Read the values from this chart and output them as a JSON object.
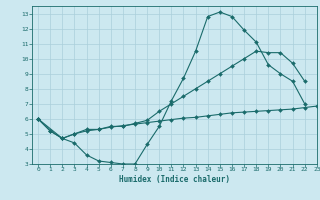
{
  "title": "",
  "xlabel": "Humidex (Indice chaleur)",
  "ylabel": "",
  "bg_color": "#cce8f0",
  "grid_color": "#aacfdb",
  "line_color": "#1a6b6b",
  "xlim": [
    -0.5,
    23
  ],
  "ylim": [
    3,
    13.5
  ],
  "xticks": [
    0,
    1,
    2,
    3,
    4,
    5,
    6,
    7,
    8,
    9,
    10,
    11,
    12,
    13,
    14,
    15,
    16,
    17,
    18,
    19,
    20,
    21,
    22,
    23
  ],
  "yticks": [
    3,
    4,
    5,
    6,
    7,
    8,
    9,
    10,
    11,
    12,
    13
  ],
  "line1_x": [
    0,
    1,
    2,
    3,
    4,
    5,
    6,
    7,
    8,
    9,
    10,
    11,
    12,
    13,
    14,
    15,
    16,
    17,
    18,
    19,
    20,
    21,
    22
  ],
  "line1_y": [
    6.0,
    5.2,
    4.7,
    4.4,
    3.6,
    3.2,
    3.1,
    3.0,
    3.0,
    4.3,
    5.5,
    7.2,
    8.7,
    10.5,
    12.8,
    13.1,
    12.8,
    11.9,
    11.1,
    9.6,
    9.0,
    8.5,
    7.0
  ],
  "line2_x": [
    0,
    2,
    3,
    4,
    5,
    6,
    7,
    8,
    9,
    10,
    11,
    12,
    13,
    14,
    15,
    16,
    17,
    18,
    19,
    20,
    21,
    22
  ],
  "line2_y": [
    6.0,
    4.7,
    5.0,
    5.3,
    5.3,
    5.5,
    5.5,
    5.7,
    5.9,
    6.5,
    7.0,
    7.5,
    8.0,
    8.5,
    9.0,
    9.5,
    10.0,
    10.5,
    10.4,
    10.4,
    9.7,
    8.5
  ],
  "line3_x": [
    0,
    1,
    2,
    3,
    4,
    5,
    6,
    7,
    8,
    9,
    10,
    11,
    12,
    13,
    14,
    15,
    16,
    17,
    18,
    19,
    20,
    21,
    22,
    23
  ],
  "line3_y": [
    6.0,
    5.2,
    4.7,
    5.0,
    5.2,
    5.3,
    5.45,
    5.55,
    5.65,
    5.75,
    5.85,
    5.95,
    6.05,
    6.1,
    6.2,
    6.3,
    6.4,
    6.45,
    6.5,
    6.55,
    6.6,
    6.65,
    6.75,
    6.85
  ]
}
